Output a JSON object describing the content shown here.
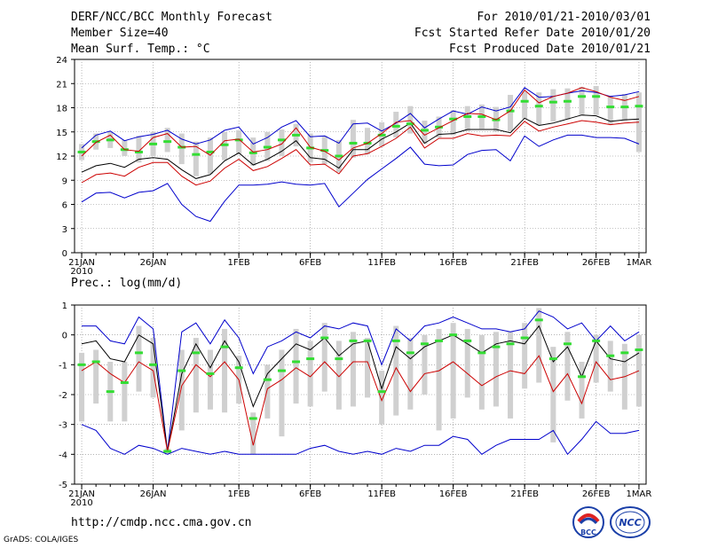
{
  "header": {
    "title": "DERF/NCC/BCC Monthly Forecast",
    "member_size": "Member Size=40",
    "variable": "Mean Surf. Temp.: °C",
    "period": "For 2010/01/21-2010/03/01",
    "refer_date": "Fcst Started Refer Date 2010/01/20",
    "produced_date": "Fcst Produced Date 2010/01/21"
  },
  "footer": {
    "url": "http://cmdp.ncc.cma.gov.cn",
    "grads": "GrADS: COLA/IGES",
    "logo_left_text": "BCC",
    "logo_right_text": "NCC"
  },
  "colors": {
    "box": "#d0d0d0",
    "median": "#33dd33",
    "mean": "#000000",
    "upper": "#0000cc",
    "lower": "#cc0000",
    "grid": "#888888"
  },
  "chart_data": [
    {
      "type": "line",
      "title": "Mean Surf. Temp.: °C",
      "ylim": [
        0,
        24
      ],
      "yticks": [
        0,
        3,
        6,
        9,
        12,
        15,
        18,
        21,
        24
      ],
      "x_days": 40,
      "xticks": [
        {
          "day": 0,
          "label": "21JAN"
        },
        {
          "day": 5,
          "label": "26JAN"
        },
        {
          "day": 11,
          "label": "1FEB"
        },
        {
          "day": 16,
          "label": "6FEB"
        },
        {
          "day": 21,
          "label": "11FEB"
        },
        {
          "day": 26,
          "label": "16FEB"
        },
        {
          "day": 31,
          "label": "21FEB"
        },
        {
          "day": 36,
          "label": "26FEB"
        },
        {
          "day": 39,
          "label": "1MAR"
        }
      ],
      "xsublabel": "2010",
      "series": [
        {
          "name": "max",
          "values": [
            6.3,
            7.4,
            7.5,
            6.8,
            7.5,
            7.7,
            8.6,
            6.0,
            4.5,
            3.9,
            6.4,
            8.4,
            8.4,
            8.5,
            8.8,
            8.5,
            8.4,
            8.6,
            5.7,
            7.4,
            9.1,
            10.4,
            11.7,
            13.1,
            11.0,
            10.8,
            10.9,
            12.2,
            12.7,
            12.8,
            11.4,
            14.5,
            13.2,
            14.0,
            14.6,
            14.6,
            14.3,
            14.3,
            14.2,
            13.5
          ]
        },
        {
          "name": "upper",
          "values": [
            13.0,
            14.6,
            15.1,
            13.9,
            14.4,
            14.7,
            15.2,
            14.1,
            13.5,
            14.0,
            15.2,
            15.6,
            13.5,
            14.3,
            15.6,
            16.4,
            14.4,
            14.5,
            13.6,
            16.0,
            16.1,
            15.1,
            16.1,
            17.3,
            15.5,
            16.6,
            17.6,
            17.2,
            18.1,
            17.6,
            18.1,
            20.5,
            19.3,
            19.4,
            19.8,
            20.1,
            19.9,
            19.4,
            19.6,
            20.0
          ]
        },
        {
          "name": "lower",
          "values": [
            8.7,
            9.7,
            9.9,
            9.5,
            10.6,
            11.2,
            11.2,
            9.5,
            8.4,
            8.9,
            10.5,
            11.6,
            10.2,
            10.7,
            11.7,
            12.8,
            10.9,
            11.0,
            9.8,
            12.0,
            12.3,
            13.2,
            14.2,
            15.6,
            13.0,
            14.2,
            14.2,
            14.8,
            14.5,
            14.6,
            14.5,
            16.3,
            15.1,
            15.6,
            16.0,
            16.4,
            16.2,
            15.9,
            16.1,
            16.2
          ]
        },
        {
          "name": "mean",
          "values": [
            10.0,
            10.8,
            11.1,
            10.6,
            11.6,
            11.8,
            11.6,
            10.3,
            9.2,
            9.7,
            11.4,
            12.4,
            10.9,
            11.6,
            12.6,
            13.9,
            11.8,
            11.6,
            10.5,
            12.8,
            12.8,
            14.1,
            15.0,
            16.1,
            13.6,
            14.7,
            14.8,
            15.3,
            15.3,
            15.3,
            14.9,
            16.7,
            15.8,
            16.1,
            16.6,
            17.1,
            17.0,
            16.3,
            16.5,
            16.6
          ]
        },
        {
          "name": "median",
          "values": [
            12.5,
            13.8,
            14.0,
            12.8,
            12.5,
            13.5,
            13.8,
            13.1,
            12.2,
            12.5,
            13.4,
            14.0,
            12.4,
            13.1,
            14.0,
            14.6,
            13.0,
            12.7,
            12.0,
            13.6,
            13.6,
            14.6,
            15.7,
            16.0,
            15.2,
            15.6,
            16.6,
            16.9,
            16.9,
            16.5,
            17.6,
            18.8,
            18.2,
            18.7,
            18.8,
            19.4,
            19.4,
            18.1,
            18.1,
            18.2
          ]
        },
        {
          "name": "min",
          "values": [
            12.0,
            13.7,
            14.6,
            12.8,
            12.6,
            14.3,
            14.8,
            13.1,
            13.2,
            12.1,
            13.9,
            14.1,
            12.5,
            12.8,
            13.5,
            15.5,
            13.1,
            12.6,
            11.5,
            13.0,
            13.6,
            14.8,
            16.2,
            16.4,
            14.6,
            15.5,
            16.4,
            17.3,
            17.2,
            16.5,
            17.6,
            20.2,
            18.6,
            19.4,
            19.8,
            20.5,
            20.0,
            19.3,
            18.9,
            19.4
          ]
        }
      ],
      "box_low": [
        11.5,
        12.8,
        13.0,
        12.0,
        11.2,
        12.0,
        12.5,
        11.0,
        9.5,
        9.8,
        11.5,
        12.2,
        10.8,
        11.4,
        12.0,
        13.2,
        11.2,
        11.0,
        10.0,
        11.8,
        12.2,
        13.2,
        14.3,
        14.8,
        13.5,
        14.3,
        14.6,
        15.1,
        15.4,
        15.0,
        15.1,
        16.6,
        15.8,
        16.3,
        16.5,
        17.0,
        17.1,
        15.9,
        16.4,
        12.5
      ],
      "box_high": [
        13.5,
        14.8,
        15.0,
        14.0,
        14.5,
        15.0,
        15.5,
        14.8,
        13.8,
        14.3,
        15.0,
        15.2,
        14.3,
        15.0,
        15.3,
        16.0,
        14.8,
        14.5,
        14.0,
        16.5,
        15.5,
        16.2,
        17.5,
        18.2,
        16.4,
        16.9,
        17.7,
        18.2,
        18.4,
        18.1,
        19.6,
        20.0,
        19.9,
        20.3,
        20.4,
        20.6,
        20.7,
        19.5,
        19.7,
        19.9
      ]
    },
    {
      "type": "line",
      "title": "Prec.: log(mm/d)",
      "ylim": [
        -5,
        1
      ],
      "yticks": [
        -5,
        -4,
        -3,
        -2,
        -1,
        0,
        1
      ],
      "x_days": 40,
      "xticks": [
        {
          "day": 0,
          "label": "21JAN"
        },
        {
          "day": 5,
          "label": "26JAN"
        },
        {
          "day": 11,
          "label": "1FEB"
        },
        {
          "day": 16,
          "label": "6FEB"
        },
        {
          "day": 21,
          "label": "11FEB"
        },
        {
          "day": 26,
          "label": "16FEB"
        },
        {
          "day": 31,
          "label": "21FEB"
        },
        {
          "day": 36,
          "label": "26FEB"
        },
        {
          "day": 39,
          "label": "1MAR"
        }
      ],
      "xsublabel": "2010",
      "series": [
        {
          "name": "upper",
          "values": [
            0.3,
            0.3,
            -0.2,
            -0.3,
            0.6,
            0.2,
            -3.9,
            0.1,
            0.4,
            -0.3,
            0.5,
            -0.1,
            -1.3,
            -0.4,
            -0.2,
            0.1,
            -0.1,
            0.3,
            0.2,
            0.4,
            0.3,
            -1.0,
            0.2,
            -0.2,
            0.3,
            0.4,
            0.6,
            0.4,
            0.2,
            0.2,
            0.1,
            0.2,
            0.8,
            0.6,
            0.2,
            0.4,
            -0.2,
            0.3,
            -0.2,
            0.1
          ]
        },
        {
          "name": "mean",
          "values": [
            -0.3,
            -0.2,
            -0.8,
            -0.9,
            0.0,
            -0.3,
            -3.9,
            -1.3,
            -0.3,
            -1.1,
            -0.2,
            -0.9,
            -2.4,
            -1.3,
            -0.8,
            -0.3,
            -0.5,
            -0.1,
            -0.7,
            -0.3,
            -0.2,
            -1.8,
            -0.4,
            -0.8,
            -0.4,
            -0.2,
            0.0,
            -0.3,
            -0.6,
            -0.3,
            -0.2,
            -0.3,
            0.3,
            -0.9,
            -0.4,
            -1.4,
            -0.2,
            -0.8,
            -0.9,
            -0.6
          ]
        },
        {
          "name": "lower",
          "values": [
            -1.2,
            -0.9,
            -1.3,
            -1.6,
            -0.9,
            -1.2,
            -3.9,
            -1.7,
            -1.0,
            -1.4,
            -0.9,
            -1.5,
            -3.7,
            -1.8,
            -1.5,
            -1.1,
            -1.4,
            -0.9,
            -1.4,
            -0.9,
            -0.9,
            -2.2,
            -1.1,
            -1.9,
            -1.3,
            -1.2,
            -0.9,
            -1.3,
            -1.7,
            -1.4,
            -1.2,
            -1.3,
            -0.7,
            -1.9,
            -1.3,
            -2.3,
            -0.9,
            -1.5,
            -1.4,
            -1.2
          ]
        },
        {
          "name": "max",
          "values": [
            -3.0,
            -3.2,
            -3.8,
            -4.0,
            -3.7,
            -3.8,
            -4.0,
            -3.8,
            -3.9,
            -4.0,
            -3.9,
            -4.0,
            -4.0,
            -4.0,
            -4.0,
            -4.0,
            -3.8,
            -3.7,
            -3.9,
            -4.0,
            -3.9,
            -4.0,
            -3.8,
            -3.9,
            -3.7,
            -3.7,
            -3.4,
            -3.5,
            -4.0,
            -3.7,
            -3.5,
            -3.5,
            -3.5,
            -3.2,
            -4.0,
            -3.5,
            -2.9,
            -3.3,
            -3.3,
            -3.2
          ]
        },
        {
          "name": "median",
          "values": [
            -1.0,
            -0.9,
            -1.9,
            -1.6,
            -0.6,
            -1.0,
            -3.9,
            -1.2,
            -0.6,
            -1.3,
            -0.4,
            -1.1,
            -2.8,
            -1.5,
            -1.2,
            -0.9,
            -0.8,
            -0.1,
            -0.8,
            -0.2,
            -0.2,
            -1.9,
            -0.2,
            -0.6,
            -0.3,
            -0.2,
            0.0,
            -0.2,
            -0.6,
            -0.4,
            -0.3,
            -0.1,
            0.5,
            -0.8,
            -0.3,
            -1.4,
            -0.2,
            -0.7,
            -0.6,
            -0.5
          ]
        }
      ],
      "box_low": [
        -2.9,
        -2.3,
        -2.9,
        -2.9,
        -1.9,
        -2.1,
        -4.0,
        -3.2,
        -2.6,
        -2.5,
        -2.6,
        -2.3,
        -4.0,
        -2.8,
        -3.4,
        -2.3,
        -2.4,
        -1.9,
        -2.5,
        -2.4,
        -2.1,
        -3.0,
        -2.7,
        -2.5,
        -2.0,
        -3.2,
        -2.8,
        -2.1,
        -2.5,
        -2.4,
        -2.8,
        -1.8,
        -1.6,
        -3.6,
        -2.2,
        -2.8,
        -1.6,
        -1.9,
        -2.5,
        -2.4
      ],
      "box_high": [
        -0.6,
        -0.5,
        -0.9,
        -0.9,
        0.3,
        -0.1,
        -3.8,
        -0.5,
        -0.1,
        -0.5,
        0.2,
        -0.7,
        -2.6,
        -1.0,
        -0.5,
        0.2,
        -0.2,
        0.4,
        -0.2,
        0.1,
        -0.1,
        -1.2,
        0.3,
        -0.1,
        0.0,
        0.2,
        0.4,
        0.2,
        0.0,
        0.1,
        0.1,
        0.4,
        0.9,
        -0.4,
        0.1,
        -0.9,
        0.0,
        -0.2,
        -0.3,
        0.0
      ]
    }
  ]
}
